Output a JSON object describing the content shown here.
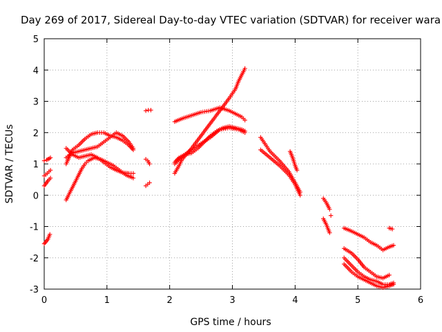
{
  "chart_data": {
    "type": "scatter",
    "title": "Day 269 of 2017, Sidereal Day-to-day VTEC variation (SDTVAR) for receiver wara",
    "xlabel": "GPS time / hours",
    "ylabel": "SDTVAR / TECUs",
    "xlim": [
      0,
      6
    ],
    "ylim": [
      -3,
      5
    ],
    "x_ticks": [
      "0",
      "1",
      "2",
      "3",
      "4",
      "5",
      "6"
    ],
    "y_ticks": [
      "-3",
      "-2",
      "-1",
      "0",
      "1",
      "2",
      "3",
      "4",
      "5"
    ],
    "grid": true,
    "legend": "none",
    "marker": "plus",
    "series_color": "#ff0000",
    "segments": [
      {
        "x": [
          0.0,
          0.04,
          0.08,
          0.1
        ],
        "y": [
          1.1,
          1.13,
          1.17,
          1.2
        ]
      },
      {
        "x": [
          0.0,
          0.03,
          0.06,
          0.1
        ],
        "y": [
          0.3,
          0.38,
          0.46,
          0.55
        ]
      },
      {
        "x": [
          0.0,
          0.05,
          0.1
        ],
        "y": [
          0.62,
          0.7,
          0.8
        ]
      },
      {
        "x": [
          0.0,
          0.03,
          0.06,
          0.09
        ],
        "y": [
          -1.55,
          -1.48,
          -1.4,
          -1.25
        ]
      },
      {
        "x": [
          0.35,
          0.45,
          0.55,
          0.65,
          0.75,
          0.85,
          0.95,
          1.05,
          1.15,
          1.25,
          1.35,
          1.42
        ],
        "y": [
          1.0,
          1.45,
          1.6,
          1.8,
          1.95,
          2.0,
          2.0,
          1.9,
          1.85,
          1.75,
          1.6,
          1.45
        ]
      },
      {
        "x": [
          0.35,
          0.45,
          0.55,
          0.65,
          0.75,
          0.85,
          0.95,
          1.05,
          1.15,
          1.25,
          1.35,
          1.42
        ],
        "y": [
          1.2,
          1.35,
          1.4,
          1.45,
          1.5,
          1.55,
          1.7,
          1.85,
          2.0,
          1.9,
          1.7,
          1.5
        ]
      },
      {
        "x": [
          0.35,
          0.45,
          0.55,
          0.65,
          0.75,
          0.85,
          0.95,
          1.05,
          1.15,
          1.25,
          1.35,
          1.42
        ],
        "y": [
          1.5,
          1.3,
          1.2,
          1.25,
          1.3,
          1.2,
          1.05,
          0.9,
          0.8,
          0.72,
          0.7,
          0.7
        ]
      },
      {
        "x": [
          0.35,
          0.4,
          0.45,
          0.5,
          0.55,
          0.6,
          0.65,
          0.7,
          0.8,
          0.9,
          1.0,
          1.1,
          1.2,
          1.3,
          1.42
        ],
        "y": [
          -0.15,
          0.05,
          0.25,
          0.45,
          0.65,
          0.85,
          1.0,
          1.1,
          1.2,
          1.15,
          1.05,
          0.95,
          0.8,
          0.65,
          0.55
        ]
      },
      {
        "x": [
          1.62,
          1.66,
          1.7
        ],
        "y": [
          2.7,
          2.72,
          2.72
        ]
      },
      {
        "x": [
          1.62,
          1.65,
          1.68
        ],
        "y": [
          1.15,
          1.1,
          1.0
        ]
      },
      {
        "x": [
          1.62,
          1.65,
          1.68
        ],
        "y": [
          0.3,
          0.35,
          0.4
        ]
      },
      {
        "x": [
          2.08,
          2.2,
          2.35,
          2.5,
          2.65,
          2.8,
          2.95,
          3.05,
          3.15,
          3.2
        ],
        "y": [
          2.35,
          2.45,
          2.55,
          2.65,
          2.7,
          2.8,
          2.7,
          2.6,
          2.5,
          2.4
        ]
      },
      {
        "x": [
          2.08,
          2.2,
          2.35,
          2.5,
          2.65,
          2.8,
          2.95,
          3.1,
          3.2
        ],
        "y": [
          1.0,
          1.25,
          1.45,
          1.65,
          1.85,
          2.1,
          2.15,
          2.1,
          2.0
        ]
      },
      {
        "x": [
          2.08,
          2.15,
          2.2,
          2.35,
          2.5,
          2.65,
          2.8,
          2.95,
          3.05,
          3.1,
          3.15,
          3.2
        ],
        "y": [
          0.7,
          0.95,
          1.15,
          1.5,
          1.9,
          2.3,
          2.7,
          3.1,
          3.4,
          3.65,
          3.85,
          4.05
        ]
      },
      {
        "x": [
          2.08,
          2.15,
          2.25,
          2.35,
          2.45,
          2.55,
          2.65,
          2.75,
          2.85,
          2.95,
          3.05,
          3.15,
          3.2
        ],
        "y": [
          1.05,
          1.2,
          1.3,
          1.35,
          1.5,
          1.7,
          1.9,
          2.05,
          2.15,
          2.2,
          2.15,
          2.1,
          2.05
        ]
      },
      {
        "x": [
          3.45,
          3.6,
          3.75,
          3.9,
          4.0,
          4.08
        ],
        "y": [
          1.85,
          1.4,
          1.1,
          0.75,
          0.4,
          0.1
        ]
      },
      {
        "x": [
          3.45,
          3.6,
          3.75,
          3.9,
          4.0,
          4.08
        ],
        "y": [
          1.45,
          1.2,
          0.95,
          0.65,
          0.35,
          0.0
        ]
      },
      {
        "x": [
          3.92,
          3.96,
          4.0,
          4.03
        ],
        "y": [
          1.4,
          1.2,
          0.95,
          0.8
        ]
      },
      {
        "x": [
          4.45,
          4.5,
          4.55
        ],
        "y": [
          -0.1,
          -0.25,
          -0.45
        ]
      },
      {
        "x": [
          4.45,
          4.5,
          4.55
        ],
        "y": [
          -0.75,
          -0.95,
          -1.2
        ]
      },
      {
        "x": [
          4.57
        ],
        "y": [
          -0.65
        ]
      },
      {
        "x": [
          4.78,
          4.9,
          5.0,
          5.1,
          5.2,
          5.3,
          5.4,
          5.5,
          5.57
        ],
        "y": [
          -1.05,
          -1.15,
          -1.25,
          -1.35,
          -1.5,
          -1.6,
          -1.75,
          -1.65,
          -1.6
        ]
      },
      {
        "x": [
          4.78,
          4.9,
          5.0,
          5.1,
          5.2,
          5.3,
          5.4,
          5.5
        ],
        "y": [
          -1.7,
          -1.85,
          -2.05,
          -2.3,
          -2.45,
          -2.6,
          -2.65,
          -2.55
        ]
      },
      {
        "x": [
          4.78,
          4.9,
          5.0,
          5.1,
          5.2,
          5.3,
          5.4,
          5.5,
          5.57
        ],
        "y": [
          -2.0,
          -2.25,
          -2.45,
          -2.6,
          -2.7,
          -2.75,
          -2.85,
          -2.85,
          -2.8
        ]
      },
      {
        "x": [
          4.78,
          4.9,
          5.0,
          5.1,
          5.2,
          5.3,
          5.4,
          5.5,
          5.57
        ],
        "y": [
          -2.2,
          -2.45,
          -2.6,
          -2.7,
          -2.8,
          -2.9,
          -2.95,
          -2.9,
          -2.85
        ]
      },
      {
        "x": [
          5.5,
          5.55
        ],
        "y": [
          -1.05,
          -1.08
        ]
      }
    ]
  }
}
